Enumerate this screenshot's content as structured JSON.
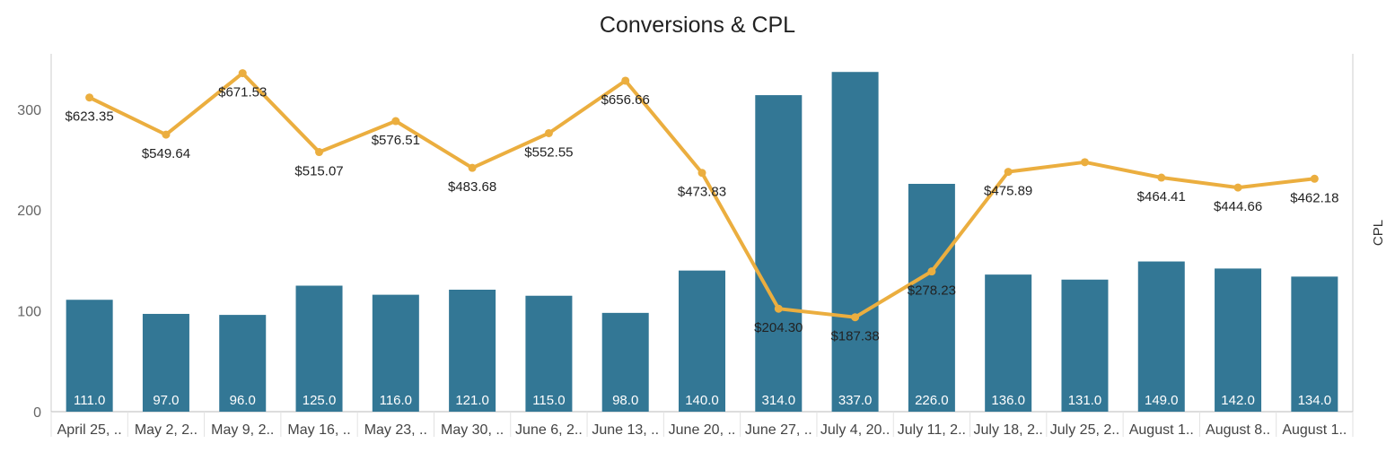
{
  "chart_data": {
    "type": "bar",
    "title": "Conversions & CPL",
    "categories": [
      "April 25, ..",
      "May 2, 2..",
      "May 9, 2..",
      "May 16, ..",
      "May 23, ..",
      "May 30, ..",
      "June 6, 2..",
      "June 13, ..",
      "June 20, ..",
      "June 27, ..",
      "July 4, 20..",
      "July 11, 2..",
      "July 18, 2..",
      "July 25, 2..",
      "August 1..",
      "August 8..",
      "August 1.."
    ],
    "series": [
      {
        "type": "bar",
        "axis": "left",
        "values": [
          111.0,
          97.0,
          96.0,
          125.0,
          116.0,
          121.0,
          115.0,
          98.0,
          140.0,
          314.0,
          337.0,
          226.0,
          136.0,
          131.0,
          149.0,
          142.0,
          134.0
        ],
        "labels": [
          "111.0",
          "97.0",
          "96.0",
          "125.0",
          "116.0",
          "121.0",
          "115.0",
          "98.0",
          "140.0",
          "314.0",
          "337.0",
          "226.0",
          "136.0",
          "131.0",
          "149.0",
          "142.0",
          "134.0"
        ],
        "color": "#337795"
      },
      {
        "name": "CPL",
        "type": "line",
        "axis": "right",
        "values": [
          623.35,
          549.64,
          671.53,
          515.07,
          576.51,
          483.68,
          552.55,
          656.66,
          473.83,
          204.3,
          187.38,
          278.23,
          475.89,
          495.0,
          464.41,
          444.66,
          462.18
        ],
        "labels": [
          "$623.35",
          "$549.64",
          "$671.53",
          "$515.07",
          "$576.51",
          "$483.68",
          "$552.55",
          "$656.66",
          "$473.83",
          "$204.30",
          "$187.38",
          "$278.23",
          "$475.89",
          "",
          "$464.41",
          "$444.66",
          "$462.18"
        ],
        "color": "#EBAE3F"
      }
    ],
    "y_left": {
      "ylim": [
        0,
        355
      ],
      "ticks": [
        0,
        100,
        200,
        300
      ],
      "tick_labels": [
        "0",
        "100",
        "200",
        "300"
      ]
    },
    "y_right": {
      "ylabel": "CPL",
      "ylim": [
        0,
        710
      ]
    },
    "grid": false
  }
}
